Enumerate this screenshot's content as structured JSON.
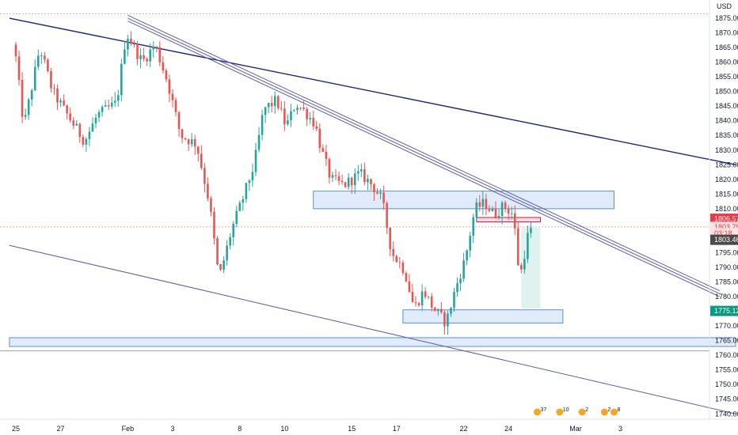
{
  "chart_data": {
    "type": "candlestick",
    "currency": "USD",
    "ylim": [
      1735,
      1880
    ],
    "y_ticks": [
      1740,
      1745,
      1750,
      1755,
      1760,
      1765,
      1770,
      1775,
      1780,
      1785,
      1790,
      1795,
      1800,
      1805,
      1810,
      1815,
      1820,
      1825,
      1830,
      1835,
      1840,
      1845,
      1850,
      1855,
      1860,
      1865,
      1870,
      1875
    ],
    "x_ticks": [
      {
        "label": "25",
        "bar": 0
      },
      {
        "label": "27",
        "bar": 14
      },
      {
        "label": "Feb",
        "bar": 35
      },
      {
        "label": "3",
        "bar": 49
      },
      {
        "label": "8",
        "bar": 70
      },
      {
        "label": "10",
        "bar": 84
      },
      {
        "label": "15",
        "bar": 105
      },
      {
        "label": "17",
        "bar": 119
      },
      {
        "label": "22",
        "bar": 140
      },
      {
        "label": "24",
        "bar": 154
      },
      {
        "label": "Mar",
        "bar": 175
      },
      {
        "label": "3",
        "bar": 189
      }
    ],
    "bar_count": 226,
    "last_bar": 161,
    "colors": {
      "up": "#26a69a",
      "down": "#ef5350",
      "trend": "#1a237e",
      "channel": "#5c5ca8",
      "zone_fill": "#dbe9fb",
      "zone_stroke": "#5b8fd6"
    },
    "anchors": [
      {
        "bar": 0,
        "price": 1866
      },
      {
        "bar": 3,
        "price": 1838
      },
      {
        "bar": 8,
        "price": 1865
      },
      {
        "bar": 12,
        "price": 1850
      },
      {
        "bar": 16,
        "price": 1843
      },
      {
        "bar": 22,
        "price": 1833
      },
      {
        "bar": 26,
        "price": 1842
      },
      {
        "bar": 32,
        "price": 1846
      },
      {
        "bar": 35,
        "price": 1870
      },
      {
        "bar": 40,
        "price": 1860
      },
      {
        "bar": 44,
        "price": 1866
      },
      {
        "bar": 48,
        "price": 1853
      },
      {
        "bar": 52,
        "price": 1835
      },
      {
        "bar": 57,
        "price": 1832
      },
      {
        "bar": 61,
        "price": 1812
      },
      {
        "bar": 64,
        "price": 1786
      },
      {
        "bar": 68,
        "price": 1803
      },
      {
        "bar": 71,
        "price": 1812
      },
      {
        "bar": 75,
        "price": 1825
      },
      {
        "bar": 78,
        "price": 1844
      },
      {
        "bar": 82,
        "price": 1847
      },
      {
        "bar": 85,
        "price": 1838
      },
      {
        "bar": 88,
        "price": 1846
      },
      {
        "bar": 91,
        "price": 1843
      },
      {
        "bar": 94,
        "price": 1839
      },
      {
        "bar": 96,
        "price": 1830
      },
      {
        "bar": 99,
        "price": 1820
      },
      {
        "bar": 103,
        "price": 1818
      },
      {
        "bar": 108,
        "price": 1822
      },
      {
        "bar": 112,
        "price": 1818
      },
      {
        "bar": 115,
        "price": 1813
      },
      {
        "bar": 118,
        "price": 1795
      },
      {
        "bar": 122,
        "price": 1789
      },
      {
        "bar": 125,
        "price": 1776
      },
      {
        "bar": 128,
        "price": 1782
      },
      {
        "bar": 131,
        "price": 1776
      },
      {
        "bar": 135,
        "price": 1771
      },
      {
        "bar": 138,
        "price": 1783
      },
      {
        "bar": 141,
        "price": 1793
      },
      {
        "bar": 144,
        "price": 1810
      },
      {
        "bar": 147,
        "price": 1812
      },
      {
        "bar": 150,
        "price": 1808
      },
      {
        "bar": 153,
        "price": 1811
      },
      {
        "bar": 156,
        "price": 1808
      },
      {
        "bar": 158,
        "price": 1786
      },
      {
        "bar": 161,
        "price": 1803.46
      }
    ],
    "annotations": {
      "trendlines": [
        {
          "kind": "trend",
          "p1": {
            "bar": -2,
            "price": 1875
          },
          "p2": {
            "bar": 225,
            "price": 1825
          }
        },
        {
          "kind": "channel",
          "p1": {
            "bar": -2,
            "price": 1797.5
          },
          "p2": {
            "bar": 225,
            "price": 1740
          }
        },
        {
          "kind": "parallel",
          "p1": {
            "bar": 35,
            "price": 1876
          },
          "p2": {
            "bar": 220,
            "price": 1782
          }
        },
        {
          "kind": "parallel",
          "p1": {
            "bar": 35,
            "price": 1875
          },
          "p2": {
            "bar": 220,
            "price": 1781
          }
        },
        {
          "kind": "parallel",
          "p1": {
            "bar": 35,
            "price": 1874
          },
          "p2": {
            "bar": 220,
            "price": 1780
          }
        }
      ],
      "zones": [
        {
          "bar1": 93,
          "bar2": 187,
          "top": 1816,
          "bottom": 1810
        },
        {
          "bar1": 121,
          "bar2": 171,
          "top": 1775.5,
          "bottom": 1771
        },
        {
          "bar1": -2,
          "bar2": 225,
          "top": 1766,
          "bottom": 1763
        },
        {
          "bar1": 144,
          "bar2": 164,
          "top": 1807,
          "bottom": 1805.5,
          "style": "red"
        }
      ],
      "target_box": {
        "bar1": 158,
        "bar2": 164,
        "top": 1803.5,
        "bottom": 1776
      },
      "level_lines": [
        {
          "price": 1876.5,
          "color": "#bfbfbf",
          "dash": "2,2"
        },
        {
          "price": 1803.8,
          "color": "#f0a8a6",
          "dash": "2,2"
        },
        {
          "price": 1761.5,
          "color": "#9e9e9e",
          "dash": ""
        }
      ]
    },
    "price_tags": [
      {
        "label": "1806.57",
        "price": 1806.57,
        "bg": "#f23645",
        "fg": "#ffffff"
      },
      {
        "label": "1803.79",
        "price": 1803.79,
        "bg": "#ffe3e3",
        "fg": "#f23645"
      },
      {
        "label": "03:18",
        "price": 1801.6,
        "bg": "#ffe3e3",
        "fg": "#f23645"
      },
      {
        "label": "1803.46",
        "price": 1799.4,
        "bg": "#4a4a4a",
        "fg": "#ffffff"
      },
      {
        "label": "1775.12",
        "price": 1775.12,
        "bg": "#089981",
        "fg": "#ffffff"
      }
    ],
    "events": [
      {
        "bar": 163,
        "count": "37"
      },
      {
        "bar": 170,
        "count": "10"
      },
      {
        "bar": 177,
        "count": "2"
      },
      {
        "bar": 184,
        "count": "2"
      },
      {
        "bar": 187,
        "count": "8"
      }
    ]
  }
}
